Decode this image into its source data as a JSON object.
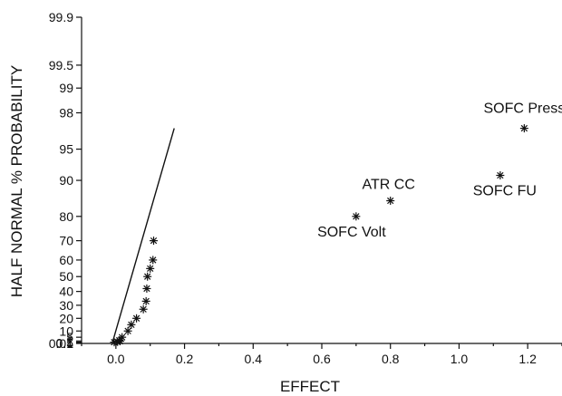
{
  "chart_data": {
    "type": "scatter",
    "title": "",
    "xlabel": "EFFECT",
    "ylabel": "HALF NORMAL % PROBABILITY",
    "xlim": [
      -0.1,
      1.3
    ],
    "ylim": [
      0.01,
      99.9
    ],
    "y_scale": "half-normal probability",
    "grid": false,
    "xticks": [
      0.0,
      0.2,
      0.4,
      0.6,
      0.8,
      1.0,
      1.2
    ],
    "xtick_labels": [
      "0.0",
      "0.2",
      "0.4",
      "0.6",
      "0.8",
      "1.0",
      "1.2"
    ],
    "yticks": [
      0.01,
      0.1,
      0.5,
      1,
      2,
      5,
      10,
      20,
      30,
      40,
      50,
      60,
      70,
      80,
      90,
      95,
      98,
      99,
      99.5,
      99.9
    ],
    "ytick_labels": [
      "0.01",
      "0.1",
      "0.5",
      "1",
      "2",
      "5",
      "10",
      "20",
      "30",
      "40",
      "50",
      "60",
      "70",
      "80",
      "90",
      "95",
      "98",
      "99",
      "99.5",
      "99.9"
    ],
    "marker": "asterisk",
    "points": [
      {
        "x": -0.005,
        "y": 1
      },
      {
        "x": 0.005,
        "y": 1.3
      },
      {
        "x": 0.012,
        "y": 1.8
      },
      {
        "x": 0.01,
        "y": 2.5
      },
      {
        "x": 0.018,
        "y": 5
      },
      {
        "x": 0.035,
        "y": 10
      },
      {
        "x": 0.045,
        "y": 15
      },
      {
        "x": 0.06,
        "y": 20
      },
      {
        "x": 0.08,
        "y": 27
      },
      {
        "x": 0.088,
        "y": 33
      },
      {
        "x": 0.09,
        "y": 42
      },
      {
        "x": 0.092,
        "y": 50
      },
      {
        "x": 0.1,
        "y": 55
      },
      {
        "x": 0.108,
        "y": 60
      },
      {
        "x": 0.11,
        "y": 70
      },
      {
        "x": 0.7,
        "y": 80
      },
      {
        "x": 0.8,
        "y": 85
      },
      {
        "x": 1.12,
        "y": 91
      },
      {
        "x": 1.19,
        "y": 97
      }
    ],
    "reference_line": {
      "from": {
        "x": -0.01,
        "y": 0.8
      },
      "to": {
        "x": 0.17,
        "y": 97
      }
    },
    "annotations": [
      {
        "text": "SOFC Press",
        "x": 1.19,
        "y": 97
      },
      {
        "text": "ATR CC",
        "x": 0.8,
        "y": 85
      },
      {
        "text": "SOFC FU",
        "x": 1.12,
        "y": 91
      },
      {
        "text": "SOFC Volt",
        "x": 0.7,
        "y": 80
      }
    ]
  }
}
